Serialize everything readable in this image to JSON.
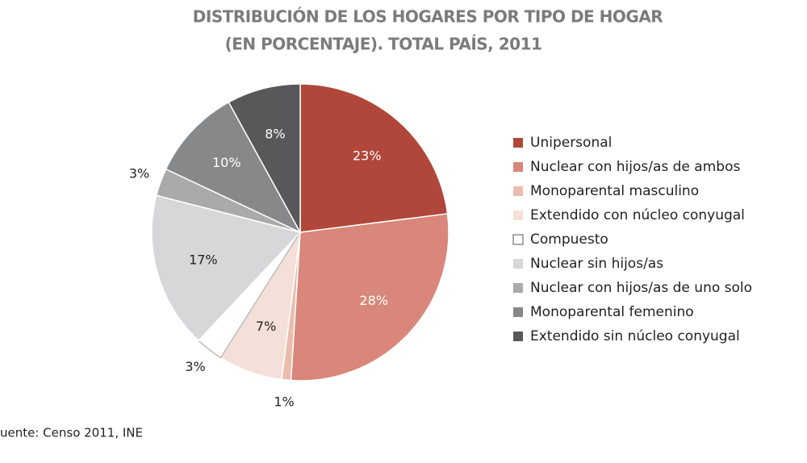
{
  "chart_data": {
    "type": "pie",
    "title": [
      "DISTRIBUCIÓN DE LOS HOGARES POR TIPO DE HOGAR",
      "(EN PORCENTAJE). TOTAL PAÍS, 2011"
    ],
    "categories": [
      "Unipersonal",
      "Nuclear con hijos/as de ambos",
      "Monoparental masculino",
      "Extendido con núcleo conyugal",
      "Compuesto",
      "Nuclear sin hijos/as",
      "Nuclear con hijos/as de uno solo",
      "Monoparental femenino",
      "Extendido sin núcleo conyugal"
    ],
    "values": [
      23,
      28,
      1,
      7,
      3,
      17,
      3,
      10,
      8
    ],
    "value_labels": [
      "23%",
      "28%",
      "1%",
      "7%",
      "3%",
      "17%",
      "3%",
      "10%",
      "8%"
    ],
    "colors": [
      "#b0473a",
      "#d9877a",
      "#ebbcae",
      "#f4e0d8",
      "#ffffff",
      "#d7d7d9",
      "#a9aaac",
      "#87888a",
      "#575859"
    ],
    "source": "uente: Censo 2011, INE"
  }
}
